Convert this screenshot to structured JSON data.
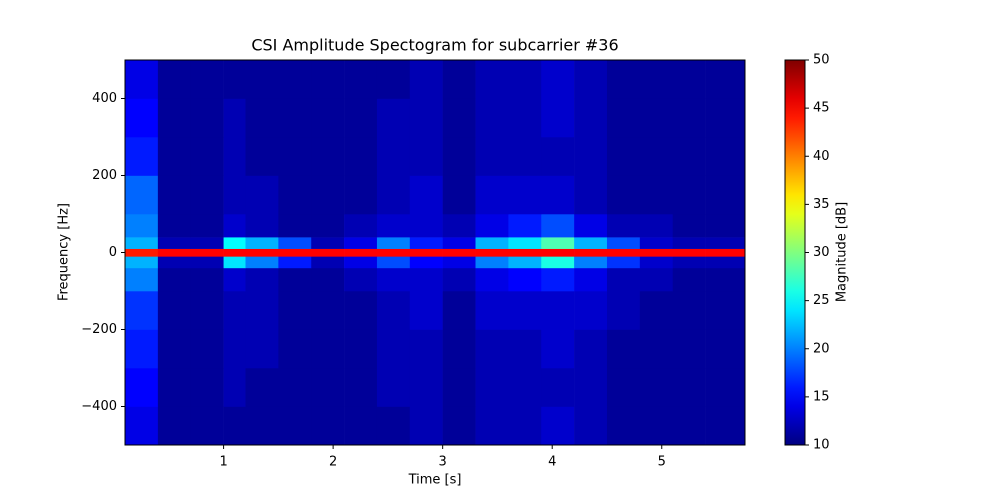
{
  "chart_data": {
    "type": "heatmap",
    "title": "CSI Amplitude Spectogram for subcarrier #36",
    "xlabel": "Time [s]",
    "ylabel": "Frequency [Hz]",
    "xlim": [
      0.1,
      5.76
    ],
    "ylim": [
      -500,
      500
    ],
    "xticks": [
      1,
      2,
      3,
      4,
      5
    ],
    "yticks": [
      {
        "value": -400,
        "label": "−400"
      },
      {
        "value": -200,
        "label": "−200"
      },
      0,
      200,
      400
    ],
    "xbins": [
      0.1,
      0.4,
      0.7,
      1.0,
      1.2,
      1.5,
      1.8,
      2.1,
      2.4,
      2.7,
      3.0,
      3.3,
      3.6,
      3.9,
      4.2,
      4.5,
      4.8,
      5.1,
      5.4,
      5.76
    ],
    "ybins": [
      -500,
      -400,
      -300,
      -200,
      -100,
      -40,
      -10,
      10,
      40,
      100,
      200,
      300,
      400,
      500
    ],
    "values": [
      [
        14,
        11,
        11,
        11,
        11,
        11,
        11,
        11,
        11,
        12,
        11,
        12,
        12,
        13,
        12,
        11,
        11,
        11,
        11
      ],
      [
        15,
        11,
        11,
        12,
        11,
        11,
        11,
        11,
        12,
        12,
        11,
        12,
        12,
        12,
        12,
        11,
        11,
        11,
        11
      ],
      [
        16,
        11,
        11,
        12,
        12,
        11,
        11,
        11,
        12,
        12,
        11,
        12,
        12,
        13,
        12,
        11,
        11,
        11,
        11
      ],
      [
        17,
        11,
        11,
        12,
        12,
        11,
        11,
        11,
        12,
        13,
        11,
        13,
        13,
        13,
        13,
        12,
        11,
        11,
        11
      ],
      [
        20,
        11,
        11,
        13,
        12,
        11,
        11,
        12,
        13,
        13,
        12,
        14,
        15,
        16,
        14,
        12,
        12,
        11,
        11
      ],
      [
        22,
        12,
        12,
        24,
        20,
        16,
        12,
        14,
        18,
        15,
        14,
        20,
        22,
        26,
        20,
        17,
        13,
        12,
        12
      ],
      [
        44,
        45,
        45,
        45,
        45,
        45,
        45,
        45,
        45,
        45,
        45,
        45,
        45,
        45,
        45,
        45,
        45,
        45,
        45
      ],
      [
        22,
        12,
        12,
        25,
        22,
        18,
        12,
        14,
        20,
        16,
        14,
        22,
        24,
        28,
        22,
        18,
        13,
        12,
        12
      ],
      [
        20,
        11,
        11,
        13,
        12,
        11,
        11,
        12,
        13,
        13,
        12,
        14,
        16,
        18,
        14,
        12,
        12,
        11,
        11
      ],
      [
        19,
        11,
        11,
        12,
        12,
        11,
        11,
        11,
        12,
        13,
        11,
        13,
        13,
        13,
        12,
        11,
        11,
        11,
        11
      ],
      [
        16,
        11,
        11,
        12,
        11,
        11,
        11,
        11,
        12,
        12,
        11,
        12,
        12,
        12,
        12,
        11,
        11,
        11,
        11
      ],
      [
        15,
        11,
        11,
        12,
        11,
        11,
        11,
        11,
        12,
        12,
        11,
        12,
        12,
        13,
        12,
        11,
        11,
        11,
        11
      ],
      [
        14,
        11,
        11,
        11,
        11,
        11,
        11,
        11,
        11,
        12,
        11,
        12,
        12,
        13,
        12,
        11,
        11,
        11,
        11
      ]
    ],
    "colormap": "jet",
    "clim": [
      10,
      50
    ],
    "cticks": [
      10,
      15,
      20,
      25,
      30,
      35,
      40,
      45,
      50
    ],
    "colorbar_label": "Magnitude [dB]"
  }
}
